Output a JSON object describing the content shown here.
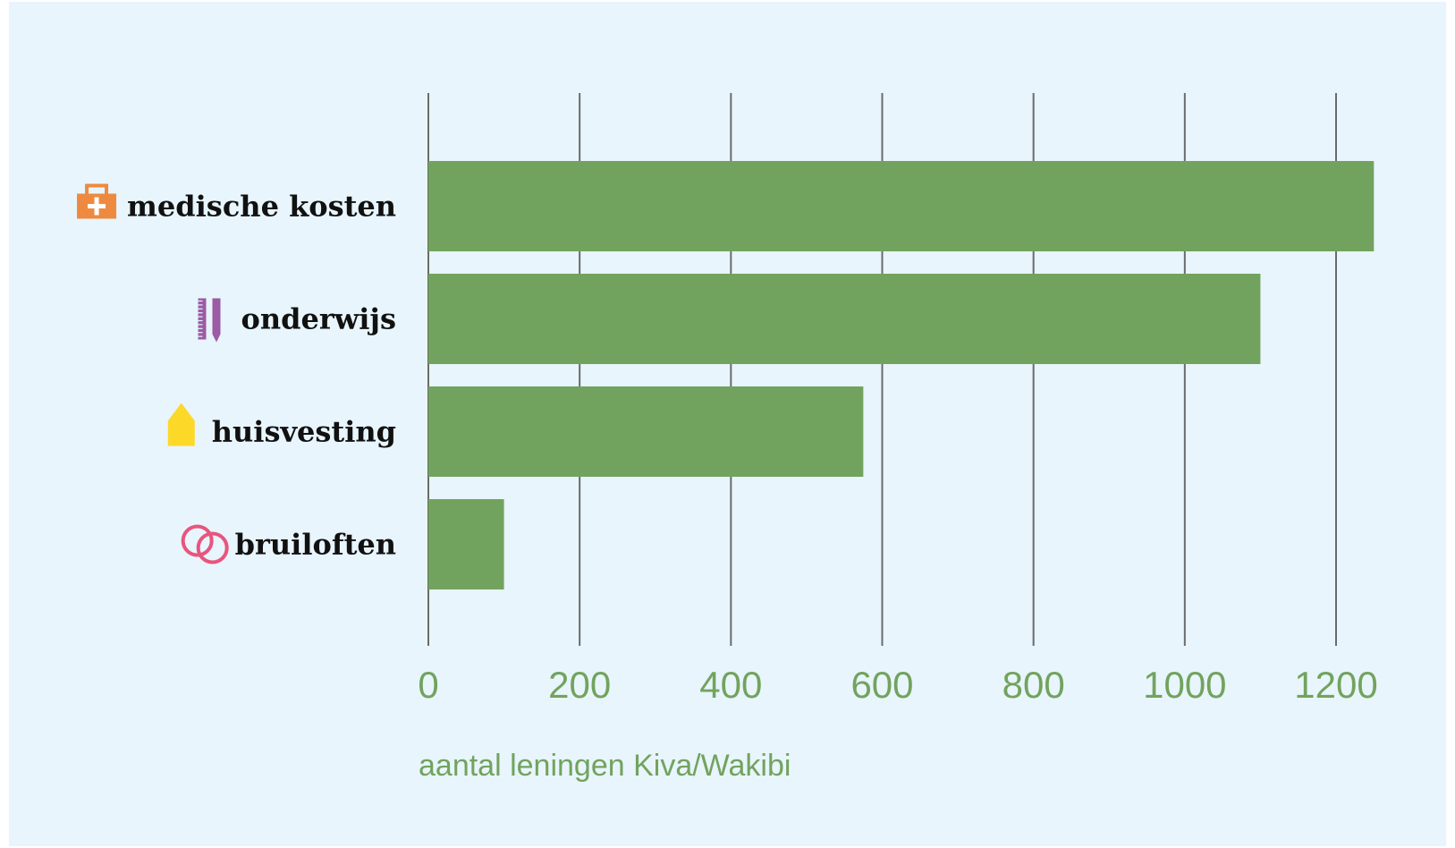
{
  "chart_data": {
    "type": "bar",
    "orientation": "horizontal",
    "categories": [
      "medische kosten",
      "onderwijs",
      "huisvesting",
      "bruiloften"
    ],
    "category_icons": [
      "first-aid-kit-icon",
      "ruler-pencil-icon",
      "house-icon",
      "wedding-rings-icon"
    ],
    "values": [
      1250,
      1100,
      575,
      100
    ],
    "xlabel": "aantal leningen Kiva/Wakibi",
    "xlim": [
      0,
      1200
    ],
    "x_ticks": [
      0,
      200,
      400,
      600,
      800,
      1000,
      1200
    ],
    "x_tick_labels": [
      "0",
      "200",
      "400",
      "600",
      "800",
      "1000",
      "1200"
    ],
    "grid": "vertical",
    "legend": "none"
  },
  "colors": {
    "background": "#e8f5fc",
    "bar": "#72a35e",
    "grid": "#6b6b6b",
    "axis_text": "#72a35e",
    "medical_icon": "#ee8a3f",
    "education_icon": "#9b5ba5",
    "housing_icon": "#fcd829",
    "wedding_icon": "#e8557d"
  }
}
